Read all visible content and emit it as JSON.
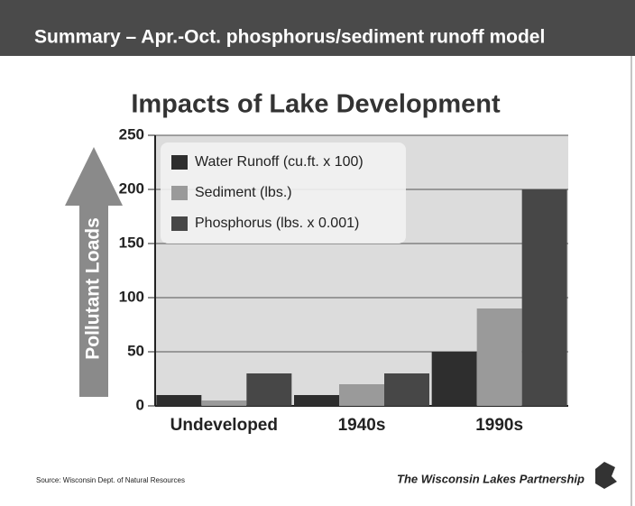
{
  "header": {
    "title": "Summary – Apr.-Oct. phosphorus/sediment runoff model"
  },
  "chart_data": {
    "type": "bar",
    "title": "Impacts of Lake Development",
    "y_label": "Pollutant Loads",
    "categories": [
      "Undeveloped",
      "1940s",
      "1990s"
    ],
    "series": [
      {
        "name": "Water Runoff (cu.ft. x 100)",
        "color": "#2e2e2e",
        "values": [
          10,
          10,
          50
        ]
      },
      {
        "name": "Sediment (lbs.)",
        "color": "#9a9a9a",
        "values": [
          5,
          20,
          90
        ]
      },
      {
        "name": "Phosphorus (lbs. x 0.001)",
        "color": "#474747",
        "values": [
          30,
          30,
          200
        ]
      }
    ],
    "ylim": [
      0,
      250
    ],
    "yticks": [
      0,
      50,
      100,
      150,
      200,
      250
    ],
    "grid": true,
    "legend": "top-left"
  },
  "footer": {
    "source": "Source: Wisconsin Dept. of Natural Resources",
    "brand": "The Wisconsin Lakes Partnership"
  }
}
